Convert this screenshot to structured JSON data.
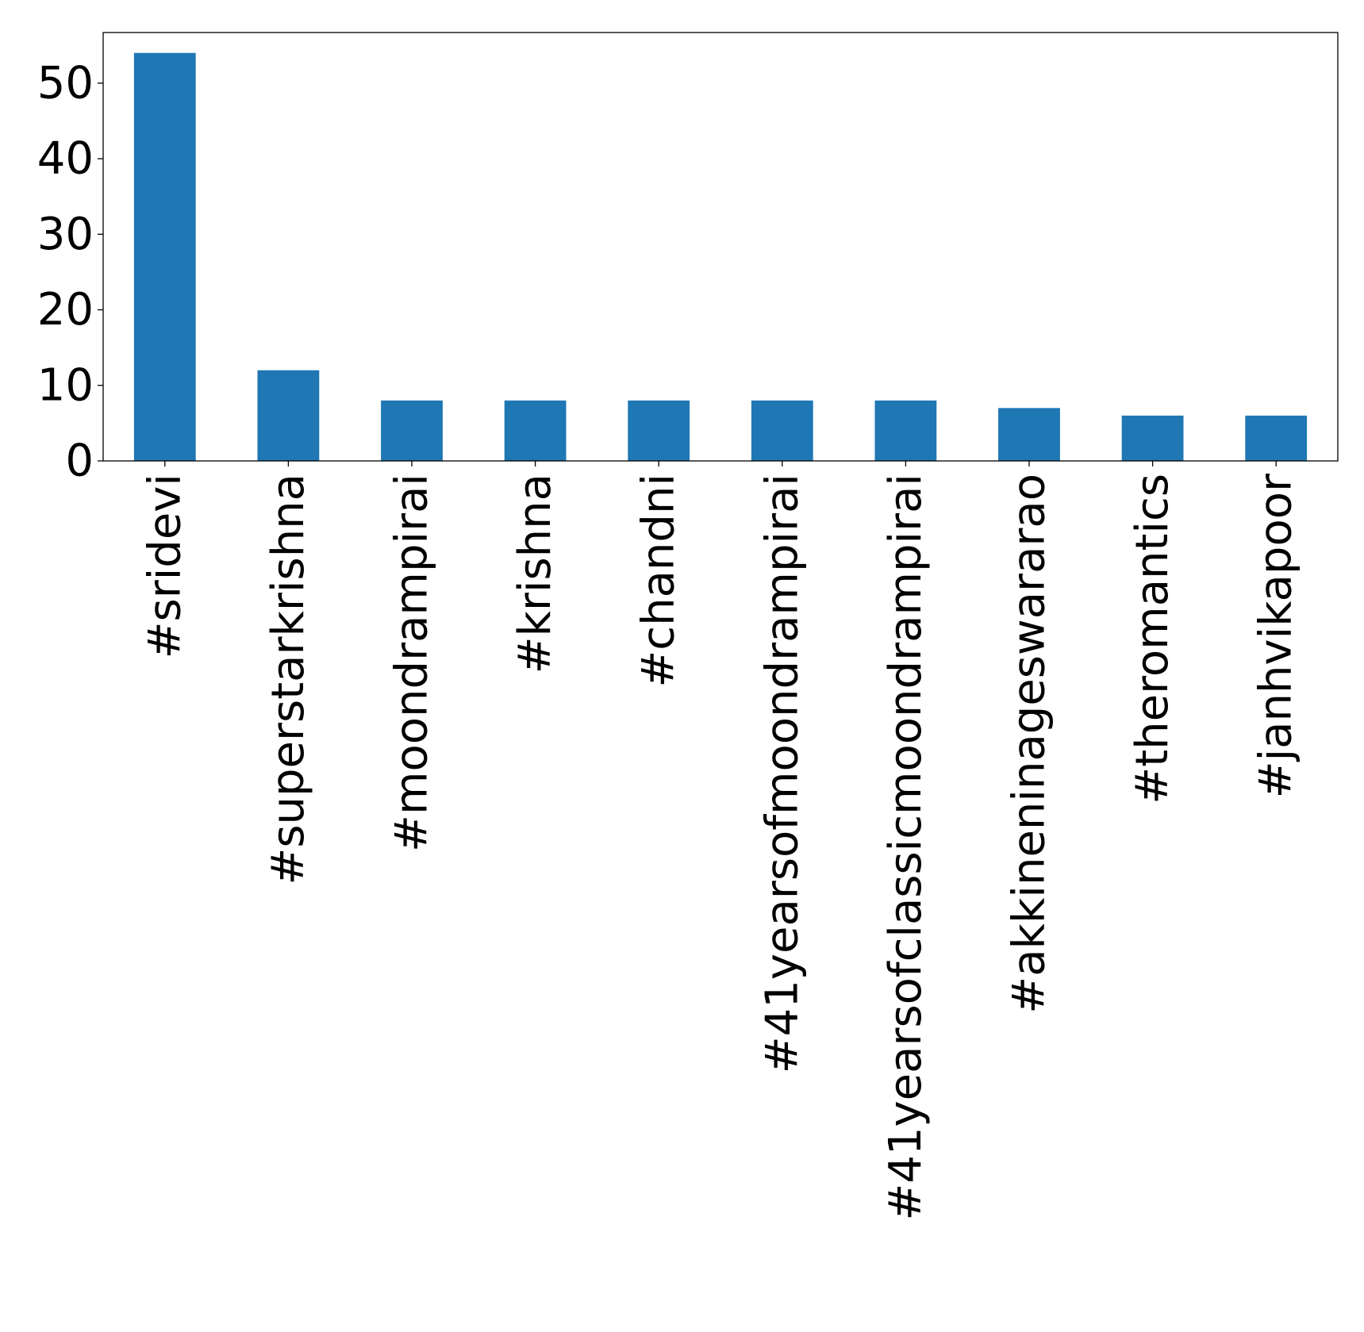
{
  "chart_data": {
    "type": "bar",
    "title": "",
    "xlabel": "",
    "ylabel": "",
    "categories": [
      "#sridevi",
      "#superstarkrishna",
      "#moondrampirai",
      "#krishna",
      "#chandni",
      "#41yearsofmoondrampirai",
      "#41yearsofclassicmoondrampirai",
      "#akkineninageswararao",
      "#theromantics",
      "#janhvikapoor"
    ],
    "values": [
      54,
      12,
      8,
      8,
      8,
      8,
      8,
      7,
      6,
      6
    ],
    "yticks": [
      "0",
      "10",
      "20",
      "30",
      "40",
      "50"
    ],
    "ylim": [
      0,
      56.7
    ],
    "bar_color": "#1f77b4",
    "grid": false,
    "legend": "none"
  }
}
